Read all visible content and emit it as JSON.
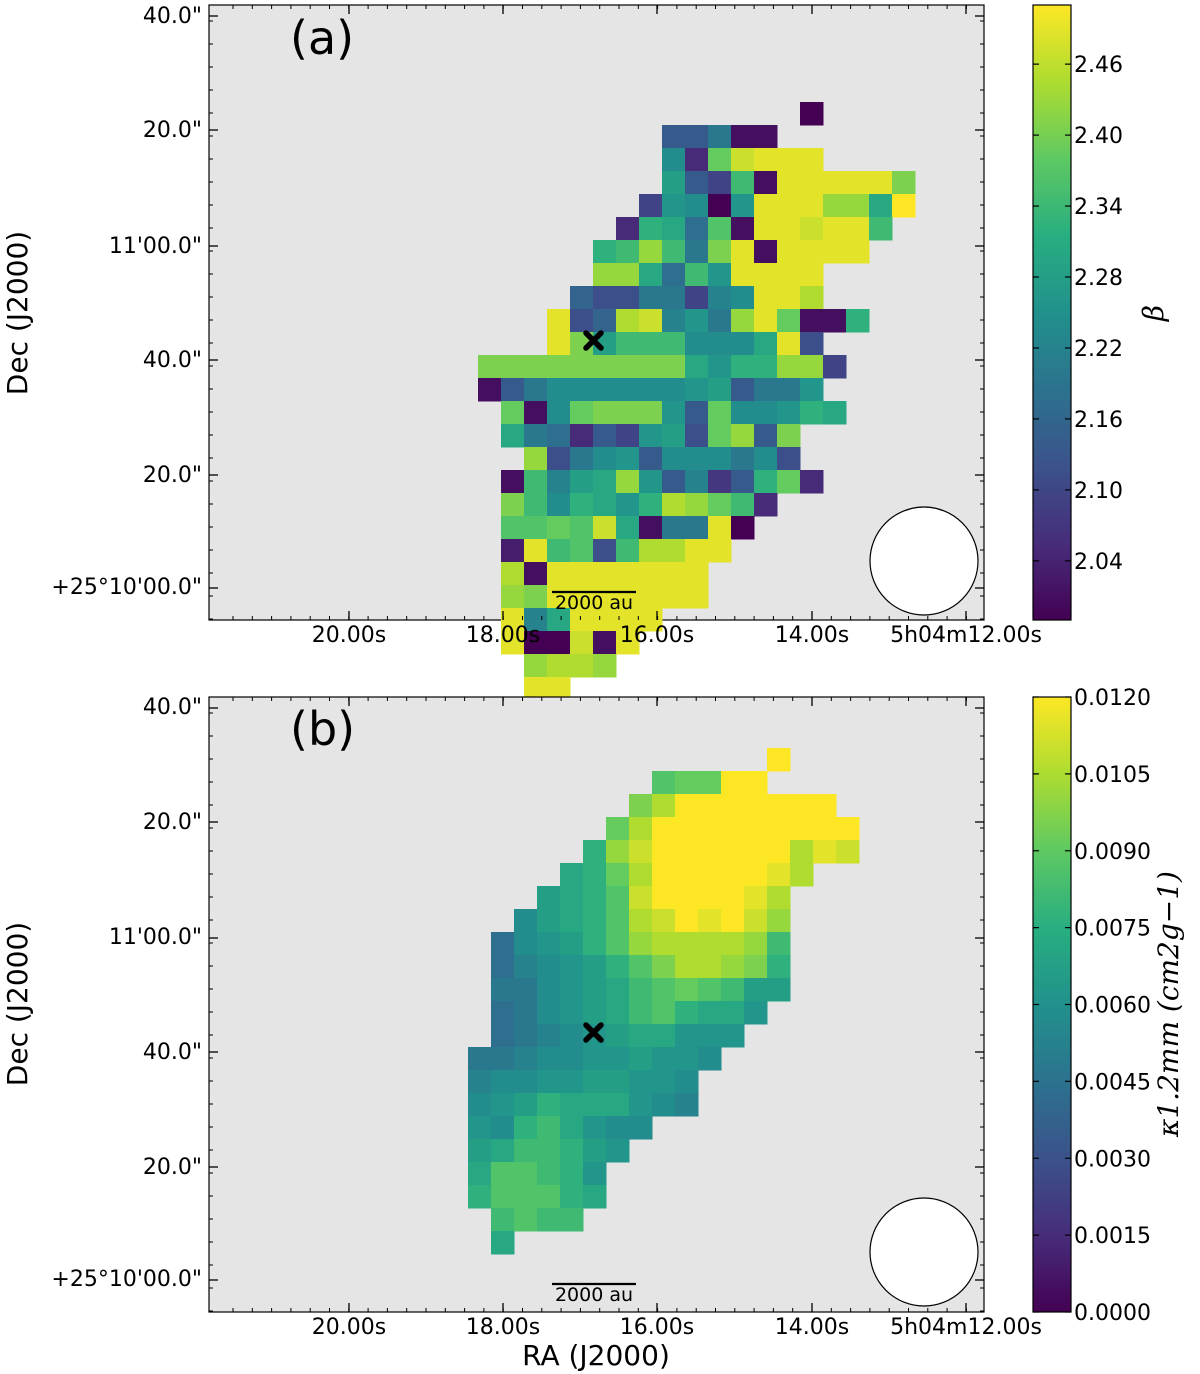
{
  "chart_data": [
    {
      "type": "heatmap",
      "panel_label": "(a)",
      "colorbar_label": "β",
      "colorbar_ticks": [
        "2.04",
        "2.10",
        "2.16",
        "2.22",
        "2.28",
        "2.34",
        "2.40",
        "2.46"
      ],
      "colorbar_range": [
        1.99,
        2.51
      ],
      "ylabel": "Dec (J2000)",
      "xlabel": "",
      "x_tick_labels": [
        "20.00s",
        "18.00s",
        "16.00s",
        "14.00s",
        "5h04m12.00s"
      ],
      "y_tick_labels": [
        "40.0\"",
        "20.0\"",
        "11'00.0\"",
        "40.0\"",
        "20.0\"",
        "+25°10'00.0\""
      ],
      "scalebar_label": "2000 au",
      "marker": "x",
      "pixel_grid": [
        ".............................",
        "...............................",
        "...........................a....",
        ".....................hhkbb......",
        ".....................mdtxyyy....",
        ".....................ohfrbyyyyyu.",
        "....................fnmanyyyvvpz.",
        "...................dqpjsbyyxyyr..",
        "..................qrvrkuybyyyy...",
        "..................vvpjrnyyyy.....",
        ".................iggkkflmyyw.....",
        "................ygiwxlnkvytbbq...",
        "................yuorrrmmmpyg.....",
        ".............uuuuuuuuupnqqvvf....",
        ".............bhkmmmmmmnohkkn......",
        "..............tbmtuuunhtmmnqp.....",
        "..............pkjdhfnogtvhu.......",
        "...............vgkmnhmmmkmg.......",
        "..............brlopvnhlehqtd......",
        "..............urmqpnqwvtrd.......",
        "..............sstsxpbkkya........",
        "..............cyrsgrwwyy.........",
        "..............wbyyyyyyy..........",
        "..............vuyyyyyyy..........",
        "..............ylpyyyy............",
        "..............yaaxby.............",
        "...............vwwv..............",
        "...............yy................"
      ],
      "level_legend": "a-z map onto the colour scale from 2.00 (a) to 2.50 (z)",
      "values_extracted": true
    },
    {
      "type": "heatmap",
      "panel_label": "(b)",
      "colorbar_label": "κ1.2mm (cm2g−1)",
      "colorbar_ticks": [
        "0.0000",
        "0.0015",
        "0.0030",
        "0.0045",
        "0.0060",
        "0.0075",
        "0.0090",
        "0.0105",
        "0.0120"
      ],
      "colorbar_range": [
        0.0,
        0.012
      ],
      "ylabel": "Dec (J2000)",
      "xlabel": "RA (J2000)",
      "x_tick_labels": [
        "20.00s",
        "18.00s",
        "16.00s",
        "14.00s",
        "5h04m12.00s"
      ],
      "y_tick_labels": [
        "40.0\"",
        "20.0\"",
        "11'00.0\"",
        "40.0\"",
        "20.0\"",
        "+25°10'00.0\""
      ],
      "scalebar_label": "2000 au",
      "marker": "x",
      "pixel_grid": [
        "..........................z....",
        ".....................sttzz.....",
        "....................uwzzzzzzz..",
        "...................twzzzzzzzzz.",
        "..................qvxzzzzzzwyx.",
        ".................pqtwzzzzzyw...",
        "................opqsxzzzzyw....",
        "...............mopqswxzyzxv....",
        "..............jmnoqsvwwwwvr....",
        "..............jlmnoqsuwwvuq....",
        "..............kkmnoprstsroo....",
        "..............jkmnoprsqppn.....",
        "..............jklmnoppnnn......",
        ".............kklmmnnonnm.......",
        ".............lmmnnoonnm........",
        ".............mnoqpppnml........",
        ".............nmqrpnmm..........",
        ".............oprrqon...........",
        ".............pssrqn............",
        ".............qsssqp............",
        "..............rsrr.............",
        "..............p................"
      ],
      "level_legend": "a-z map onto the colour scale from 0.0000 (a) to 0.0120 (z)",
      "values_extracted": true
    }
  ]
}
